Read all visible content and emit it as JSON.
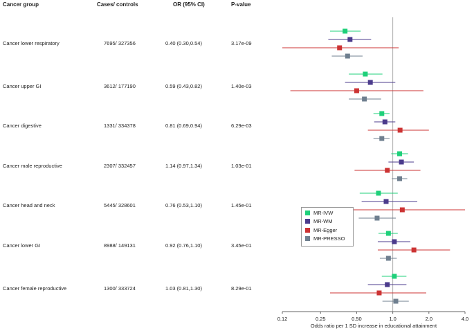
{
  "headers": {
    "group": "Cancer group",
    "cases": "Cases/ controls",
    "or": "OR (95% CI)",
    "p": "P-value"
  },
  "chart_data": {
    "type": "forest",
    "xlabel": "Odds ratio per 1 SD increase in educational attainment",
    "x_scale": "log",
    "xlim": [
      0.12,
      4.0
    ],
    "ticks": [
      {
        "v": 0.12,
        "label": "0.12"
      },
      {
        "v": 0.25,
        "label": "0.25"
      },
      {
        "v": 0.5,
        "label": "0.50"
      },
      {
        "v": 1.0,
        "label": "1.0"
      },
      {
        "v": 2.0,
        "label": "2.0"
      },
      {
        "v": 4.0,
        "label": "4.0"
      }
    ],
    "reference_line": 1.0,
    "methods": [
      {
        "name": "MR-IVW",
        "color": "#1fd07a"
      },
      {
        "name": "MR-WM",
        "color": "#4b3b8c"
      },
      {
        "name": "MR-Egger",
        "color": "#cc3333"
      },
      {
        "name": "MR-PRESSO",
        "color": "#6f7f8f"
      }
    ],
    "rows": [
      {
        "group": "Cancer lower respiratory",
        "cases": "7695/ 327356",
        "or_text": "0.40 (0.30,0.54)",
        "p": "3.17e-09",
        "est": [
          [
            0.4,
            0.3,
            0.54
          ],
          [
            0.44,
            0.29,
            0.66
          ],
          [
            0.36,
            0.12,
            1.12
          ],
          [
            0.42,
            0.31,
            0.56
          ]
        ]
      },
      {
        "group": "Cancer upper GI",
        "cases": "3612/ 177190",
        "or_text": "0.59 (0.43,0.82)",
        "p": "1.40e-03",
        "est": [
          [
            0.59,
            0.43,
            0.82
          ],
          [
            0.65,
            0.4,
            1.05
          ],
          [
            0.5,
            0.14,
            1.8
          ],
          [
            0.58,
            0.43,
            0.8
          ]
        ]
      },
      {
        "group": "Cancer digestive",
        "cases": "1331/ 334378",
        "or_text": "0.81 (0.69,0.94)",
        "p": "6.29e-03",
        "est": [
          [
            0.81,
            0.69,
            0.94
          ],
          [
            0.86,
            0.7,
            1.05
          ],
          [
            1.15,
            0.62,
            2.0
          ],
          [
            0.81,
            0.69,
            0.94
          ]
        ]
      },
      {
        "group": "Cancer male reproductive",
        "cases": "2307/ 332457",
        "or_text": "1.14 (0.97,1.34)",
        "p": "1.03e-01",
        "est": [
          [
            1.14,
            0.97,
            1.34
          ],
          [
            1.18,
            0.92,
            1.5
          ],
          [
            0.9,
            0.48,
            1.7
          ],
          [
            1.14,
            0.98,
            1.32
          ]
        ]
      },
      {
        "group": "Cancer head and neck",
        "cases": "5445/ 328601",
        "or_text": "0.76 (0.53,1.10)",
        "p": "1.45e-01",
        "est": [
          [
            0.76,
            0.53,
            1.1
          ],
          [
            0.88,
            0.55,
            1.6
          ],
          [
            1.2,
            0.4,
            4.0
          ],
          [
            0.74,
            0.52,
            1.06
          ]
        ]
      },
      {
        "group": "Cancer lower GI",
        "cases": "8988/ 149131",
        "or_text": "0.92 (0.76,1.10)",
        "p": "3.45e-01",
        "est": [
          [
            0.92,
            0.76,
            1.1
          ],
          [
            1.03,
            0.75,
            1.4
          ],
          [
            1.5,
            0.75,
            3.0
          ],
          [
            0.92,
            0.78,
            1.08
          ]
        ]
      },
      {
        "group": "Cancer female reproductive",
        "cases": "1300/ 333724",
        "or_text": "1.03 (0.81,1.30)",
        "p": "8.29e-01",
        "est": [
          [
            1.03,
            0.81,
            1.3
          ],
          [
            0.9,
            0.62,
            1.3
          ],
          [
            0.77,
            0.3,
            1.9
          ],
          [
            1.06,
            0.82,
            1.36
          ]
        ]
      }
    ]
  }
}
